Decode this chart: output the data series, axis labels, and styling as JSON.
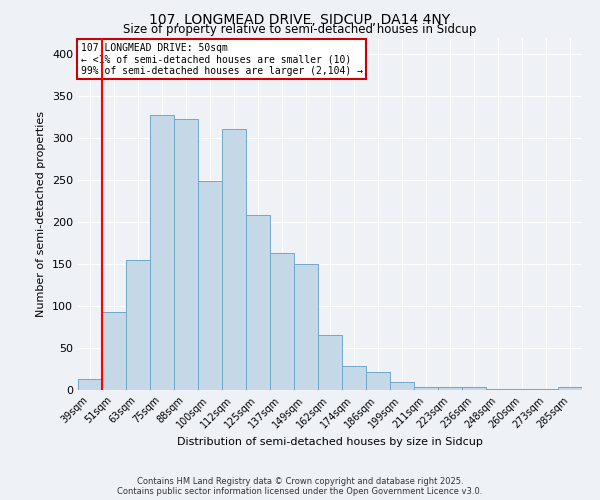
{
  "title1": "107, LONGMEAD DRIVE, SIDCUP, DA14 4NY",
  "title2": "Size of property relative to semi-detached houses in Sidcup",
  "xlabel": "Distribution of semi-detached houses by size in Sidcup",
  "ylabel": "Number of semi-detached properties",
  "categories": [
    "39sqm",
    "51sqm",
    "63sqm",
    "75sqm",
    "88sqm",
    "100sqm",
    "112sqm",
    "125sqm",
    "137sqm",
    "149sqm",
    "162sqm",
    "174sqm",
    "186sqm",
    "199sqm",
    "211sqm",
    "223sqm",
    "236sqm",
    "248sqm",
    "260sqm",
    "273sqm",
    "285sqm"
  ],
  "values": [
    13,
    93,
    155,
    328,
    323,
    249,
    311,
    209,
    163,
    150,
    65,
    29,
    21,
    10,
    4,
    3,
    3,
    1,
    1,
    1,
    4
  ],
  "bar_color": "#c5d8e8",
  "bar_edge_color": "#6fa8c8",
  "red_line_x": 0.5,
  "annotation_title": "107 LONGMEAD DRIVE: 50sqm",
  "annotation_line1": "← <1% of semi-detached houses are smaller (10)",
  "annotation_line2": "99% of semi-detached houses are larger (2,104) →",
  "annotation_box_color": "#ffffff",
  "annotation_box_edge_color": "#cc0000",
  "background_color": "#eef2f7",
  "grid_color": "#ffffff",
  "ylim": [
    0,
    420
  ],
  "yticks": [
    0,
    50,
    100,
    150,
    200,
    250,
    300,
    350,
    400
  ],
  "footer1": "Contains HM Land Registry data © Crown copyright and database right 2025.",
  "footer2": "Contains public sector information licensed under the Open Government Licence v3.0."
}
